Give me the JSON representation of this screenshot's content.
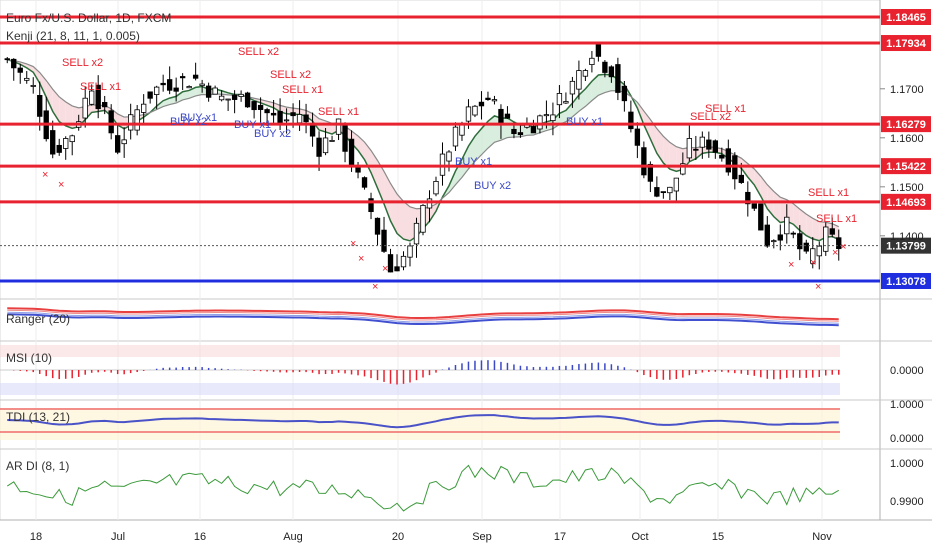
{
  "header": {
    "symbol_title": "Euro Fx/U.S. Dollar, 1D, FXCM",
    "indicator": "Kenji (21, 8, 11, 1, 0.005)"
  },
  "panes": {
    "ranger": "Ranger (20)",
    "msi": "MSI (10)",
    "tdi": "TDI (13, 21)",
    "ardi": "AR DI (8, 1)"
  },
  "chart_data": {
    "type": "candlestick",
    "x_tick_labels": [
      "18",
      "Jul",
      "16",
      "Aug",
      "20",
      "Sep",
      "17",
      "Oct",
      "15",
      "Nov"
    ],
    "y_axis_ticks": [
      1.17,
      1.16,
      1.15,
      1.14
    ],
    "horizontal_levels": [
      {
        "value": 1.18465,
        "label": "1.18465",
        "color": "#e8232f"
      },
      {
        "value": 1.17934,
        "label": "1.17934",
        "color": "#e8232f"
      },
      {
        "value": 1.16279,
        "label": "1.16279",
        "color": "#e8232f"
      },
      {
        "value": 1.15422,
        "label": "1.15422",
        "color": "#e8232f"
      },
      {
        "value": 1.14693,
        "label": "1.14693",
        "color": "#e8232f"
      },
      {
        "value": 1.13078,
        "label": "1.13078",
        "color": "#1f2fe0"
      }
    ],
    "last_price": {
      "value": 1.13799,
      "label": "1.13799"
    },
    "signals": [
      {
        "text": "SELL x2",
        "kind": "sell"
      },
      {
        "text": "SELL x1",
        "kind": "sell"
      },
      {
        "text": "SELL x2",
        "kind": "sell"
      },
      {
        "text": "SELL x2",
        "kind": "sell"
      },
      {
        "text": "SELL x1",
        "kind": "sell"
      },
      {
        "text": "SELL x1",
        "kind": "sell"
      },
      {
        "text": "SELL x2",
        "kind": "sell"
      },
      {
        "text": "SELL x1",
        "kind": "sell"
      },
      {
        "text": "SELL x1",
        "kind": "sell"
      },
      {
        "text": "SELL x1",
        "kind": "sell"
      },
      {
        "text": "BUY x2",
        "kind": "buy"
      },
      {
        "text": "BUY x1",
        "kind": "buy"
      },
      {
        "text": "BUY x1",
        "kind": "buy"
      },
      {
        "text": "BUY x2",
        "kind": "buy"
      },
      {
        "text": "BUY x1",
        "kind": "buy"
      },
      {
        "text": "BUY x2",
        "kind": "buy"
      },
      {
        "text": "BUY x1",
        "kind": "buy"
      }
    ],
    "msi_ticks": [
      "0.0000"
    ],
    "tdi_ticks": [
      "1.0000",
      "0.0000"
    ],
    "ardi_ticks": [
      "1.0000",
      "0.9900"
    ],
    "colors": {
      "bull": "#ffffff",
      "bear": "#000000",
      "level": "#e8232f",
      "support": "#1f2fe0"
    }
  }
}
